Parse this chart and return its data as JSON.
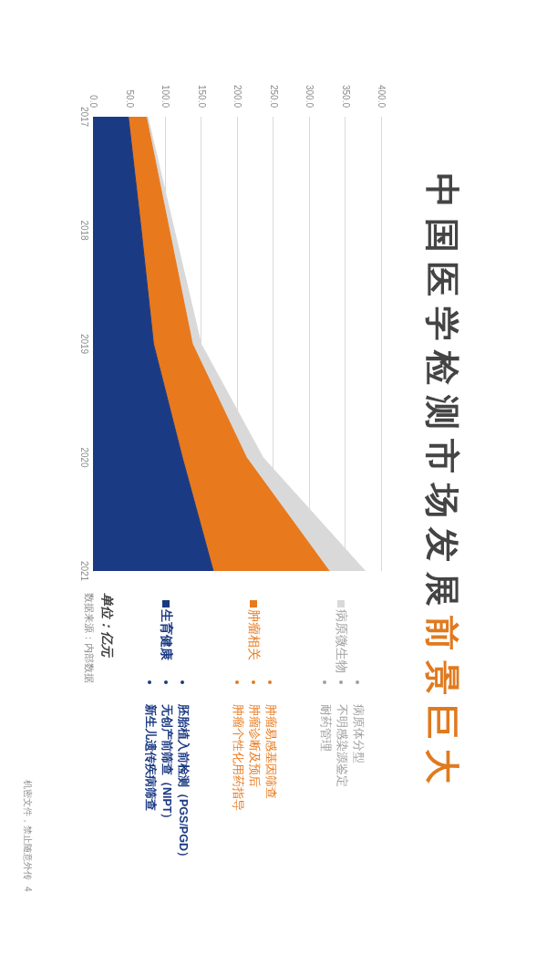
{
  "chart_data": {
    "type": "area",
    "title": "中国医学检测市场发展",
    "subtitle": "前景巨大",
    "orientation": "horizontal",
    "stacked": true,
    "categories": [
      "2017",
      "2018",
      "2019",
      "2020",
      "2021"
    ],
    "series": [
      {
        "name": "生育健康",
        "color": "#1b3a84",
        "values": [
          49,
          67,
          84,
          124,
          167
        ]
      },
      {
        "name": "肿瘤相关",
        "color": "#e8791d",
        "values": [
          25,
          39,
          54,
          89,
          161
        ]
      },
      {
        "name": "病原微生物",
        "color": "#d9d9d9",
        "values": [
          2,
          7,
          12,
          23,
          50
        ]
      }
    ],
    "xlim": [
      0,
      400
    ],
    "xticks": [
      {
        "value": 0,
        "label": "0.0"
      },
      {
        "value": 50,
        "label": "50.0"
      },
      {
        "value": 100,
        "label": "100.0"
      },
      {
        "value": 150,
        "label": "150.0"
      },
      {
        "value": 200,
        "label": "200.0"
      },
      {
        "value": 250,
        "label": "250.0"
      },
      {
        "value": 300,
        "label": "300.0"
      },
      {
        "value": 350,
        "label": "350.0"
      },
      {
        "value": 400,
        "label": "400.0"
      }
    ],
    "grid": "x",
    "legend": "bottom",
    "annotations": [
      "病原体分型",
      "不明感染源鉴定",
      "耐药管理",
      "肿瘤易感基因筛查",
      "肿瘤诊断及预后",
      "肿瘤个性化用药指导",
      "胚胎植入前检测（PGS/PGD）",
      "无创产前筛查（NIPT）",
      "新生儿遗传疾病筛查",
      "单位：亿元",
      "数据来源：内部数据",
      "机密文件，禁止随意外传",
      "4"
    ]
  }
}
